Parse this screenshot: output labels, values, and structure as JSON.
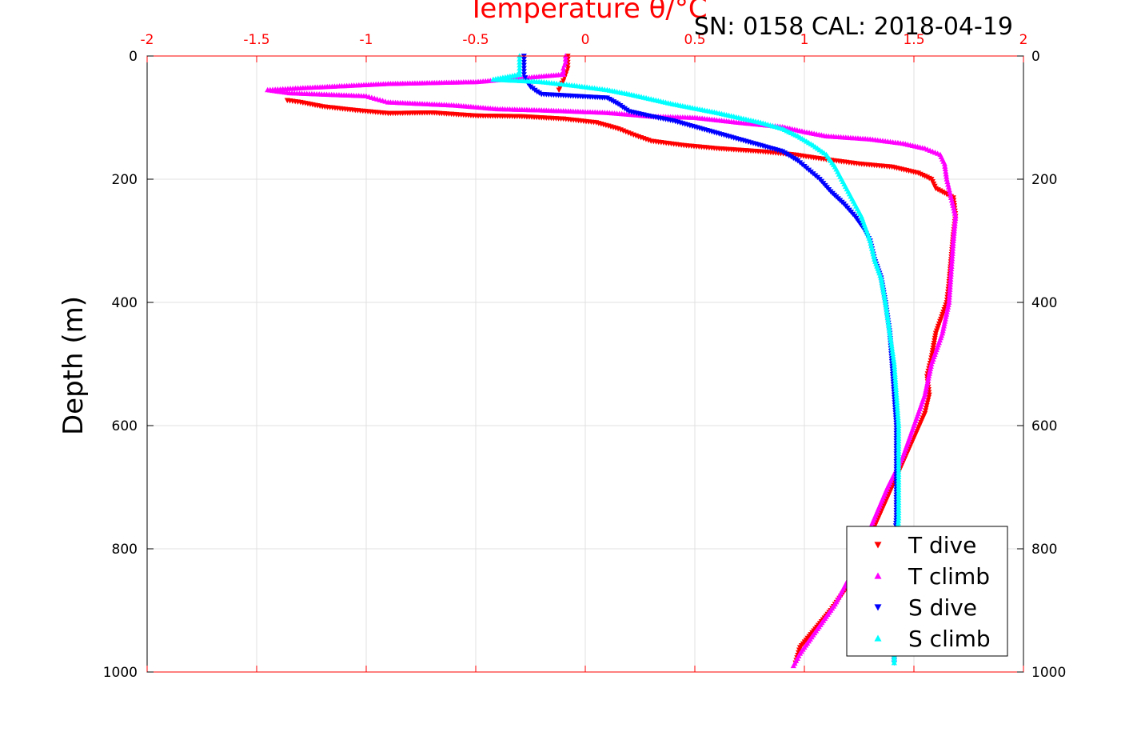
{
  "chart_data": {
    "type": "scatter",
    "title": "",
    "xlabel": "Temperature θ/°C",
    "subtitle": "SN: 0158  CAL: 2018-04-19",
    "ylabel": "Depth (m)",
    "xlim": [
      -2,
      2
    ],
    "ylim": [
      0,
      1000
    ],
    "y_inverted": true,
    "x_axis_position": "top",
    "x_ticks": [
      "-2",
      "-1.5",
      "-1",
      "-0.5",
      "0",
      "0.5",
      "1",
      "1.5",
      "2"
    ],
    "y_ticks": [
      "0",
      "200",
      "400",
      "600",
      "800",
      "1000"
    ],
    "grid": true,
    "legend_position": "bottom-right",
    "series": [
      {
        "name": "T dive",
        "color": "#ff0000",
        "marker": "triangle-down",
        "points": [
          [
            -0.08,
            0
          ],
          [
            -0.08,
            10
          ],
          [
            -0.08,
            20
          ],
          [
            -0.09,
            30
          ],
          [
            -0.1,
            40
          ],
          [
            -0.12,
            55
          ],
          [
            -1.36,
            72
          ],
          [
            -1.3,
            75
          ],
          [
            -1.2,
            82
          ],
          [
            -1.05,
            88
          ],
          [
            -0.9,
            93
          ],
          [
            -0.7,
            92
          ],
          [
            -0.5,
            97
          ],
          [
            -0.3,
            98
          ],
          [
            -0.1,
            102
          ],
          [
            0.05,
            108
          ],
          [
            0.15,
            118
          ],
          [
            0.22,
            128
          ],
          [
            0.3,
            138
          ],
          [
            0.45,
            145
          ],
          [
            0.6,
            150
          ],
          [
            0.8,
            155
          ],
          [
            0.95,
            160
          ],
          [
            1.1,
            168
          ],
          [
            1.25,
            175
          ],
          [
            1.4,
            180
          ],
          [
            1.52,
            190
          ],
          [
            1.58,
            200
          ],
          [
            1.6,
            215
          ],
          [
            1.68,
            230
          ],
          [
            1.69,
            260
          ],
          [
            1.68,
            290
          ],
          [
            1.67,
            330
          ],
          [
            1.66,
            370
          ],
          [
            1.65,
            400
          ],
          [
            1.6,
            450
          ],
          [
            1.58,
            490
          ],
          [
            1.56,
            520
          ],
          [
            1.57,
            550
          ],
          [
            1.55,
            580
          ],
          [
            1.5,
            620
          ],
          [
            1.45,
            660
          ],
          [
            1.4,
            700
          ],
          [
            1.35,
            740
          ],
          [
            1.3,
            780
          ],
          [
            1.25,
            820
          ],
          [
            1.2,
            860
          ],
          [
            1.12,
            900
          ],
          [
            1.05,
            930
          ],
          [
            0.98,
            960
          ],
          [
            0.96,
            985
          ]
        ]
      },
      {
        "name": "T climb",
        "color": "#ff00ff",
        "marker": "triangle-up",
        "points": [
          [
            -0.09,
            0
          ],
          [
            -0.09,
            10
          ],
          [
            -0.1,
            20
          ],
          [
            -0.1,
            30
          ],
          [
            -0.5,
            42
          ],
          [
            -0.9,
            45
          ],
          [
            -1.3,
            52
          ],
          [
            -1.45,
            55
          ],
          [
            -1.35,
            60
          ],
          [
            -1.0,
            65
          ],
          [
            -0.95,
            70
          ],
          [
            -0.9,
            75
          ],
          [
            -0.6,
            80
          ],
          [
            -0.4,
            86
          ],
          [
            -0.2,
            88
          ],
          [
            0.1,
            92
          ],
          [
            0.3,
            98
          ],
          [
            0.5,
            100
          ],
          [
            0.7,
            108
          ],
          [
            0.9,
            115
          ],
          [
            1.0,
            123
          ],
          [
            1.1,
            130
          ],
          [
            1.3,
            135
          ],
          [
            1.45,
            142
          ],
          [
            1.55,
            150
          ],
          [
            1.62,
            160
          ],
          [
            1.64,
            175
          ],
          [
            1.65,
            200
          ],
          [
            1.67,
            230
          ],
          [
            1.69,
            260
          ],
          [
            1.68,
            300
          ],
          [
            1.67,
            350
          ],
          [
            1.66,
            400
          ],
          [
            1.63,
            450
          ],
          [
            1.58,
            500
          ],
          [
            1.55,
            550
          ],
          [
            1.5,
            600
          ],
          [
            1.45,
            650
          ],
          [
            1.38,
            700
          ],
          [
            1.32,
            750
          ],
          [
            1.26,
            800
          ],
          [
            1.2,
            850
          ],
          [
            1.14,
            890
          ],
          [
            1.08,
            920
          ],
          [
            1.02,
            950
          ],
          [
            0.98,
            970
          ],
          [
            0.95,
            990
          ]
        ]
      },
      {
        "name": "S dive",
        "color": "#0000ff",
        "marker": "triangle-down",
        "points": [
          [
            -0.28,
            0
          ],
          [
            -0.28,
            10
          ],
          [
            -0.28,
            20
          ],
          [
            -0.28,
            30
          ],
          [
            -0.27,
            40
          ],
          [
            -0.25,
            50
          ],
          [
            -0.22,
            58
          ],
          [
            -0.2,
            62
          ],
          [
            0.1,
            68
          ],
          [
            0.15,
            78
          ],
          [
            0.2,
            90
          ],
          [
            0.3,
            98
          ],
          [
            0.4,
            105
          ],
          [
            0.5,
            115
          ],
          [
            0.6,
            125
          ],
          [
            0.7,
            135
          ],
          [
            0.8,
            145
          ],
          [
            0.9,
            155
          ],
          [
            0.97,
            170
          ],
          [
            1.02,
            185
          ],
          [
            1.07,
            200
          ],
          [
            1.12,
            220
          ],
          [
            1.18,
            240
          ],
          [
            1.23,
            260
          ],
          [
            1.27,
            280
          ],
          [
            1.3,
            300
          ],
          [
            1.32,
            330
          ],
          [
            1.35,
            360
          ],
          [
            1.37,
            400
          ],
          [
            1.39,
            450
          ],
          [
            1.4,
            500
          ],
          [
            1.41,
            550
          ],
          [
            1.42,
            600
          ],
          [
            1.42,
            650
          ],
          [
            1.42,
            700
          ],
          [
            1.42,
            750
          ],
          [
            1.41,
            800
          ],
          [
            1.41,
            850
          ],
          [
            1.41,
            900
          ],
          [
            1.41,
            950
          ],
          [
            1.41,
            985
          ]
        ]
      },
      {
        "name": "S climb",
        "color": "#00ffff",
        "marker": "triangle-up",
        "points": [
          [
            -0.3,
            0
          ],
          [
            -0.3,
            10
          ],
          [
            -0.3,
            20
          ],
          [
            -0.3,
            30
          ],
          [
            -0.42,
            38
          ],
          [
            -0.2,
            42
          ],
          [
            -0.05,
            48
          ],
          [
            0.1,
            55
          ],
          [
            0.2,
            62
          ],
          [
            0.3,
            70
          ],
          [
            0.4,
            78
          ],
          [
            0.5,
            85
          ],
          [
            0.6,
            92
          ],
          [
            0.7,
            100
          ],
          [
            0.8,
            108
          ],
          [
            0.9,
            118
          ],
          [
            0.97,
            130
          ],
          [
            1.04,
            145
          ],
          [
            1.1,
            160
          ],
          [
            1.14,
            180
          ],
          [
            1.17,
            200
          ],
          [
            1.2,
            220
          ],
          [
            1.23,
            240
          ],
          [
            1.26,
            260
          ],
          [
            1.28,
            280
          ],
          [
            1.3,
            300
          ],
          [
            1.32,
            330
          ],
          [
            1.35,
            360
          ],
          [
            1.37,
            400
          ],
          [
            1.39,
            450
          ],
          [
            1.41,
            500
          ],
          [
            1.42,
            550
          ],
          [
            1.43,
            600
          ],
          [
            1.43,
            650
          ],
          [
            1.43,
            700
          ],
          [
            1.43,
            750
          ],
          [
            1.42,
            800
          ],
          [
            1.42,
            850
          ],
          [
            1.41,
            900
          ],
          [
            1.41,
            950
          ],
          [
            1.41,
            985
          ]
        ]
      }
    ]
  }
}
